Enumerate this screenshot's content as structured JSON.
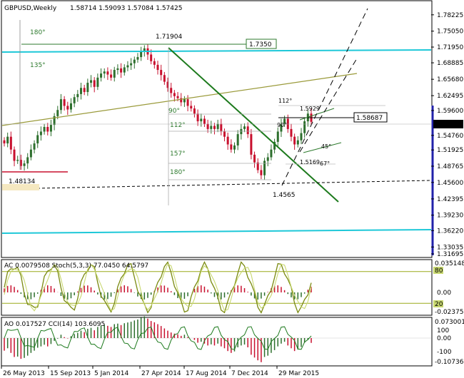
{
  "header": {
    "symbol": "GBPUSD,Weekly",
    "ohlc": "1.58714 1.59093 1.57084 1.57425"
  },
  "colors": {
    "up": "#2d6f2d",
    "down": "#c8102e",
    "cyan": "#1ec8d8",
    "trend": "#1d7a1d",
    "olive": "#9a9a3a",
    "stoch": "#9aaa1a"
  },
  "main_annotations": {
    "peak": "1.71904",
    "low_left": "1.48134",
    "low_right": "1.4565",
    "target_box": "1.7350",
    "right_box": "1.58687",
    "small_1": "1.5929",
    "small_2": "1.5169",
    "deg_180_top": "180°",
    "deg_135": "135°",
    "deg_90": "90°",
    "deg_112": "112°",
    "deg_157": "157°",
    "deg_180_bot": "180°",
    "deg_112_small": "112°",
    "deg_90_small": "90°",
    "deg_45_small": "45°",
    "deg_67_small": "67°"
  },
  "osc1": {
    "label": "AC 0.0079508 Stoch(5,3,3) 77.0450 64.5797",
    "level_high": "80",
    "level_low": "20"
  },
  "osc2": {
    "label": "AO 0.017527 CCI(14) 103.6095"
  },
  "axis_main": [
    "1.78225",
    "1.75050",
    "1.71950",
    "1.68885",
    "1.65680",
    "1.62495",
    "1.59600",
    "1.57425",
    "1.54760",
    "1.51925",
    "1.48765",
    "1.45600",
    "1.42395",
    "1.39230",
    "1.36220",
    "1.33035",
    "1.31695"
  ],
  "axis_osc1": [
    "0.035148",
    "80",
    "0.00",
    "20",
    "-0.023759"
  ],
  "axis_osc2": [
    "0.073001",
    "100",
    "0.00",
    "-100",
    "-0.107361"
  ],
  "x_labels": [
    "26 May 2013",
    "15 Sep 2013",
    "5 Jan 2014",
    "27 Apr 2014",
    "17 Aug 2014",
    "7 Dec 2014",
    "29 Mar 2015"
  ],
  "chart_data": {
    "type": "candlestick",
    "symbol": "GBPUSD",
    "timeframe": "Weekly",
    "y_range": [
      1.3169,
      1.8
    ],
    "closes": [
      1.532,
      1.545,
      1.52,
      1.498,
      1.5,
      1.488,
      1.493,
      1.505,
      1.52,
      1.532,
      1.548,
      1.555,
      1.564,
      1.555,
      1.568,
      1.585,
      1.597,
      1.618,
      1.605,
      1.598,
      1.61,
      1.622,
      1.628,
      1.64,
      1.632,
      1.65,
      1.655,
      1.642,
      1.66,
      1.668,
      1.672,
      1.666,
      1.66,
      1.675,
      1.678,
      1.67,
      1.68,
      1.684,
      1.688,
      1.695,
      1.7,
      1.71,
      1.717,
      1.705,
      1.692,
      1.685,
      1.675,
      1.665,
      1.652,
      1.64,
      1.63,
      1.624,
      1.62,
      1.612,
      1.618,
      1.605,
      1.6,
      1.59,
      1.575,
      1.58,
      1.57,
      1.56,
      1.566,
      1.56,
      1.57,
      1.555,
      1.545,
      1.53,
      1.52,
      1.528,
      1.55,
      1.56,
      1.565,
      1.55,
      1.51,
      1.495,
      1.48,
      1.47,
      1.498,
      1.505,
      1.52,
      1.535,
      1.555,
      1.57,
      1.58,
      1.56,
      1.545,
      1.53,
      1.538,
      1.552,
      1.575,
      1.59,
      1.574
    ]
  }
}
